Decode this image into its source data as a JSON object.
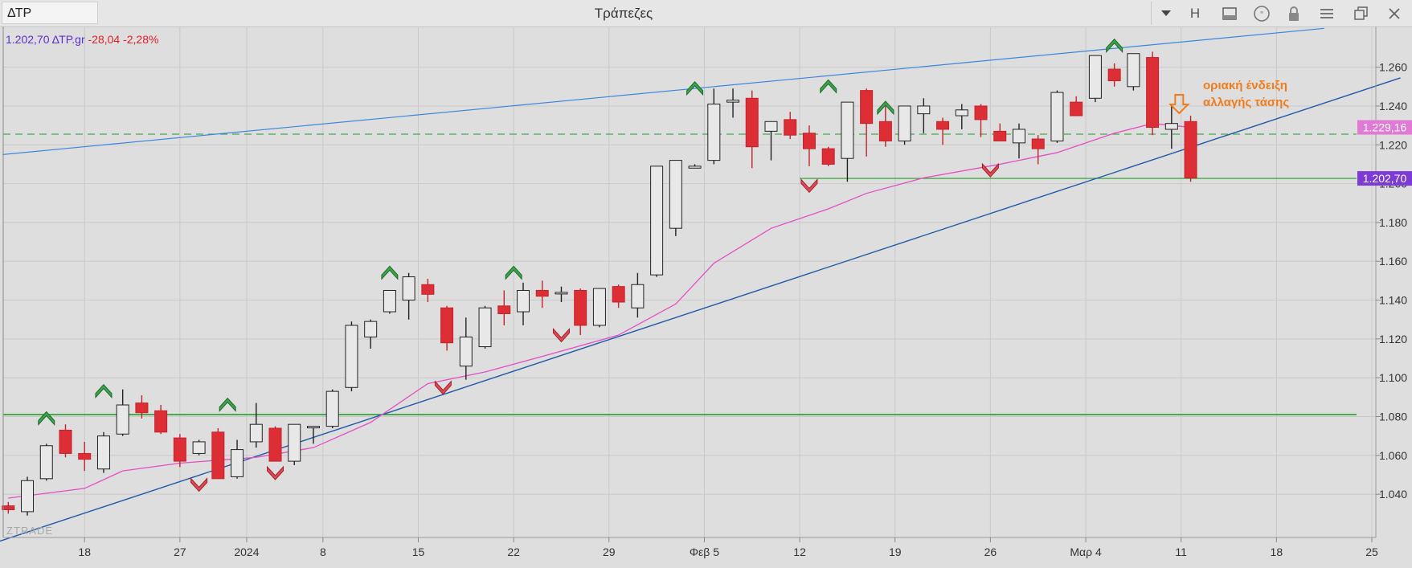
{
  "window": {
    "symbol": "ΔΤΡ",
    "title": "Τράπεζες",
    "buttons": [
      {
        "name": "h-button",
        "label": "H"
      },
      {
        "name": "panel-icon",
        "glyph": "▭"
      },
      {
        "name": "speech-icon",
        "glyph": "❞"
      },
      {
        "name": "lock-icon",
        "glyph": ""
      },
      {
        "name": "menu-icon",
        "glyph": "☰"
      },
      {
        "name": "restore-icon",
        "glyph": "❐"
      },
      {
        "name": "close-icon",
        "glyph": "✕"
      }
    ]
  },
  "hud": {
    "price": "1.202,70",
    "symbol": "ΔΤΡ.gr",
    "change": "-28,04",
    "pct": "-2,28%"
  },
  "watermark": "ZTRADE",
  "colors": {
    "up": "#e8e8e8",
    "down": "#dd2e36",
    "ma": "#e34fc5",
    "trend": "#1f5aa8",
    "trend_upper": "#3b86e0",
    "support": "#22a027",
    "dash": "#4aa64a",
    "ma_label": "#e07ad4",
    "last_label": "#7d3ad6",
    "annotation": "#f07c1c"
  },
  "chart_data": {
    "type": "candlestick",
    "ylim": [
      1.025,
      1.275
    ],
    "y_ticks": [
      1.04,
      1.06,
      1.08,
      1.1,
      1.12,
      1.14,
      1.16,
      1.18,
      1.2,
      1.22,
      1.24,
      1.26
    ],
    "y_tick_labels": [
      "1.040",
      "1.060",
      "1.080",
      "1.100",
      "1.120",
      "1.140",
      "1.160",
      "1.180",
      "1.200",
      "1.220",
      "1.240",
      "1.260"
    ],
    "x_ticks": [
      {
        "i": 4,
        "label": "18"
      },
      {
        "i": 9,
        "label": "27"
      },
      {
        "i": 12.5,
        "label": "2024"
      },
      {
        "i": 16.5,
        "label": "8"
      },
      {
        "i": 21.5,
        "label": "15"
      },
      {
        "i": 26.5,
        "label": "22"
      },
      {
        "i": 31.5,
        "label": "29"
      },
      {
        "i": 36.5,
        "label": "Φεβ 5"
      },
      {
        "i": 41.5,
        "label": "12"
      },
      {
        "i": 46.5,
        "label": "19"
      },
      {
        "i": 51.5,
        "label": "26"
      },
      {
        "i": 56.5,
        "label": "Μαρ 4"
      },
      {
        "i": 61.5,
        "label": "11"
      },
      {
        "i": 66.5,
        "label": "18"
      },
      {
        "i": 71.5,
        "label": "25"
      }
    ],
    "candles": [
      [
        1.034,
        1.036,
        1.03,
        1.032
      ],
      [
        1.031,
        1.049,
        1.029,
        1.047
      ],
      [
        1.048,
        1.066,
        1.047,
        1.065
      ],
      [
        1.073,
        1.076,
        1.059,
        1.061
      ],
      [
        1.061,
        1.067,
        1.052,
        1.058
      ],
      [
        1.053,
        1.072,
        1.051,
        1.07
      ],
      [
        1.071,
        1.094,
        1.07,
        1.086
      ],
      [
        1.087,
        1.091,
        1.079,
        1.082
      ],
      [
        1.083,
        1.086,
        1.071,
        1.072
      ],
      [
        1.069,
        1.071,
        1.054,
        1.057
      ],
      [
        1.061,
        1.068,
        1.06,
        1.067
      ],
      [
        1.072,
        1.074,
        1.048,
        1.048
      ],
      [
        1.049,
        1.068,
        1.048,
        1.063
      ],
      [
        1.067,
        1.087,
        1.064,
        1.076
      ],
      [
        1.074,
        1.075,
        1.057,
        1.057
      ],
      [
        1.057,
        1.076,
        1.055,
        1.076
      ],
      [
        1.075,
        1.075,
        1.066,
        1.075
      ],
      [
        1.075,
        1.094,
        1.074,
        1.093
      ],
      [
        1.095,
        1.129,
        1.093,
        1.127
      ],
      [
        1.121,
        1.13,
        1.115,
        1.129
      ],
      [
        1.134,
        1.145,
        1.133,
        1.145
      ],
      [
        1.14,
        1.154,
        1.13,
        1.152
      ],
      [
        1.148,
        1.151,
        1.139,
        1.143
      ],
      [
        1.136,
        1.137,
        1.114,
        1.118
      ],
      [
        1.106,
        1.131,
        1.099,
        1.121
      ],
      [
        1.116,
        1.137,
        1.115,
        1.136
      ],
      [
        1.137,
        1.145,
        1.127,
        1.133
      ],
      [
        1.134,
        1.149,
        1.127,
        1.145
      ],
      [
        1.145,
        1.15,
        1.136,
        1.142
      ],
      [
        1.144,
        1.147,
        1.139,
        1.144
      ],
      [
        1.145,
        1.146,
        1.122,
        1.127
      ],
      [
        1.127,
        1.146,
        1.126,
        1.146
      ],
      [
        1.147,
        1.148,
        1.136,
        1.139
      ],
      [
        1.136,
        1.154,
        1.131,
        1.148
      ],
      [
        1.153,
        1.208,
        1.152,
        1.209
      ],
      [
        1.177,
        1.212,
        1.173,
        1.212
      ],
      [
        1.208,
        1.21,
        1.208,
        1.209
      ],
      [
        1.212,
        1.249,
        1.21,
        1.241
      ],
      [
        1.242,
        1.249,
        1.234,
        1.243
      ],
      [
        1.244,
        1.248,
        1.208,
        1.219
      ],
      [
        1.227,
        1.232,
        1.212,
        1.232
      ],
      [
        1.233,
        1.237,
        1.223,
        1.225
      ],
      [
        1.226,
        1.23,
        1.209,
        1.218
      ],
      [
        1.218,
        1.219,
        1.209,
        1.21
      ],
      [
        1.213,
        1.242,
        1.201,
        1.242
      ],
      [
        1.248,
        1.249,
        1.214,
        1.231
      ],
      [
        1.232,
        1.24,
        1.219,
        1.222
      ],
      [
        1.222,
        1.24,
        1.22,
        1.24
      ],
      [
        1.236,
        1.244,
        1.226,
        1.24
      ],
      [
        1.232,
        1.234,
        1.22,
        1.228
      ],
      [
        1.235,
        1.241,
        1.228,
        1.238
      ],
      [
        1.24,
        1.241,
        1.224,
        1.233
      ],
      [
        1.227,
        1.231,
        1.223,
        1.222
      ],
      [
        1.221,
        1.231,
        1.213,
        1.228
      ],
      [
        1.223,
        1.225,
        1.21,
        1.218
      ],
      [
        1.222,
        1.248,
        1.221,
        1.247
      ],
      [
        1.242,
        1.245,
        1.235,
        1.235
      ],
      [
        1.244,
        1.266,
        1.242,
        1.266
      ],
      [
        1.259,
        1.262,
        1.25,
        1.253
      ],
      [
        1.25,
        1.267,
        1.248,
        1.267
      ],
      [
        1.265,
        1.268,
        1.225,
        1.229
      ],
      [
        1.228,
        1.24,
        1.218,
        1.231
      ],
      [
        1.232,
        1.235,
        1.201,
        1.203
      ]
    ],
    "ma": [
      [
        0,
        1.038
      ],
      [
        4,
        1.043
      ],
      [
        6,
        1.052
      ],
      [
        9,
        1.056
      ],
      [
        13,
        1.059
      ],
      [
        16,
        1.064
      ],
      [
        19,
        1.077
      ],
      [
        22,
        1.097
      ],
      [
        25,
        1.103
      ],
      [
        28,
        1.111
      ],
      [
        32,
        1.122
      ],
      [
        35,
        1.138
      ],
      [
        37,
        1.159
      ],
      [
        40,
        1.177
      ],
      [
        43,
        1.187
      ],
      [
        45,
        1.195
      ],
      [
        48,
        1.203
      ],
      [
        52,
        1.21
      ],
      [
        55,
        1.216
      ],
      [
        58,
        1.226
      ],
      [
        60,
        1.231
      ],
      [
        62,
        1.229
      ]
    ],
    "lines": {
      "support_h": 1.081,
      "resist_dash": 1.2255,
      "last_line": 1.2027,
      "trend_lower": [
        [
          -0.7,
          1.015
        ],
        [
          73,
          1.2545
        ]
      ],
      "trend_upper": [
        [
          -0.3,
          1.215
        ],
        [
          69,
          1.28
        ]
      ]
    },
    "arrows_up": [
      [
        2,
        1.08
      ],
      [
        5,
        1.094
      ],
      [
        11.5,
        1.087
      ],
      [
        20,
        1.155
      ],
      [
        26.5,
        1.155
      ],
      [
        36,
        1.25
      ],
      [
        43,
        1.251
      ],
      [
        46,
        1.24
      ],
      [
        58,
        1.272
      ]
    ],
    "arrows_down": [
      [
        10,
        1.044
      ],
      [
        14,
        1.05
      ],
      [
        22.8,
        1.094
      ],
      [
        29,
        1.121
      ],
      [
        42,
        1.198
      ],
      [
        51.5,
        1.206
      ]
    ],
    "price_labels": [
      {
        "value": 1.229,
        "text": "1.229,16"
      },
      {
        "value": 1.2027,
        "text": "1.202,70"
      }
    ],
    "annotation": {
      "lines": [
        "οριακή ένδειξη",
        "αλλαγής τάσης"
      ]
    }
  }
}
